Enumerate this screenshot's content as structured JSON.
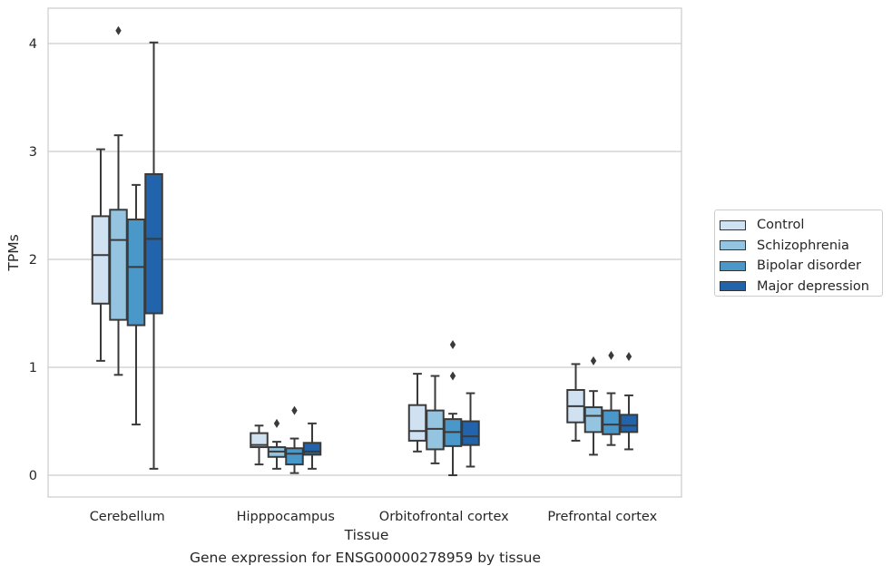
{
  "chart_data": {
    "type": "box",
    "caption": "Gene expression for ENSG00000278959 by tissue",
    "xlabel": "Tissue",
    "ylabel": "TPMs",
    "ylim": [
      -0.2,
      4.3
    ],
    "yticks": [
      0,
      1,
      2,
      3,
      4
    ],
    "grid": "horizontal",
    "legend_position": "right",
    "categories": [
      "Cerebellum",
      "Hipppocampus",
      "Orbitofrontal cortex",
      "Prefrontal cortex"
    ],
    "series": [
      {
        "name": "Control",
        "color": "#d0e1f2",
        "boxes": [
          {
            "whislo": 1.06,
            "q1": 1.59,
            "med": 2.04,
            "q3": 2.4,
            "whishi": 3.02,
            "fliers": []
          },
          {
            "whislo": 0.1,
            "q1": 0.26,
            "med": 0.28,
            "q3": 0.39,
            "whishi": 0.46,
            "fliers": []
          },
          {
            "whislo": 0.22,
            "q1": 0.32,
            "med": 0.41,
            "q3": 0.65,
            "whishi": 0.94,
            "fliers": []
          },
          {
            "whislo": 0.32,
            "q1": 0.49,
            "med": 0.64,
            "q3": 0.79,
            "whishi": 1.03,
            "fliers": []
          }
        ]
      },
      {
        "name": "Schizophrenia",
        "color": "#94c4df",
        "boxes": [
          {
            "whislo": 0.93,
            "q1": 1.44,
            "med": 2.18,
            "q3": 2.46,
            "whishi": 3.15,
            "fliers": [
              4.12
            ]
          },
          {
            "whislo": 0.06,
            "q1": 0.17,
            "med": 0.22,
            "q3": 0.26,
            "whishi": 0.31,
            "fliers": [
              0.48
            ]
          },
          {
            "whislo": 0.11,
            "q1": 0.24,
            "med": 0.43,
            "q3": 0.6,
            "whishi": 0.92,
            "fliers": []
          },
          {
            "whislo": 0.19,
            "q1": 0.4,
            "med": 0.55,
            "q3": 0.63,
            "whishi": 0.78,
            "fliers": [
              1.06
            ]
          }
        ]
      },
      {
        "name": "Bipolar disorder",
        "color": "#4a98c9",
        "boxes": [
          {
            "whislo": 0.47,
            "q1": 1.39,
            "med": 1.93,
            "q3": 2.37,
            "whishi": 2.69,
            "fliers": []
          },
          {
            "whislo": 0.02,
            "q1": 0.1,
            "med": 0.2,
            "q3": 0.25,
            "whishi": 0.34,
            "fliers": [
              0.6
            ]
          },
          {
            "whislo": 0.0,
            "q1": 0.27,
            "med": 0.4,
            "q3": 0.52,
            "whishi": 0.57,
            "fliers": [
              0.92,
              1.21
            ]
          },
          {
            "whislo": 0.28,
            "q1": 0.38,
            "med": 0.47,
            "q3": 0.6,
            "whishi": 0.76,
            "fliers": [
              1.11
            ]
          }
        ]
      },
      {
        "name": "Major depression",
        "color": "#2164ab",
        "boxes": [
          {
            "whislo": 0.06,
            "q1": 1.5,
            "med": 2.19,
            "q3": 2.79,
            "whishi": 4.01,
            "fliers": []
          },
          {
            "whislo": 0.06,
            "q1": 0.19,
            "med": 0.22,
            "q3": 0.3,
            "whishi": 0.48,
            "fliers": []
          },
          {
            "whislo": 0.08,
            "q1": 0.28,
            "med": 0.36,
            "q3": 0.5,
            "whishi": 0.76,
            "fliers": []
          },
          {
            "whislo": 0.24,
            "q1": 0.4,
            "med": 0.46,
            "q3": 0.56,
            "whishi": 0.74,
            "fliers": [
              1.1
            ]
          }
        ]
      }
    ]
  },
  "legend": {
    "items": [
      {
        "label": "Control",
        "color": "#d0e1f2"
      },
      {
        "label": "Schizophrenia",
        "color": "#94c4df"
      },
      {
        "label": "Bipolar disorder",
        "color": "#4a98c9"
      },
      {
        "label": "Major depression",
        "color": "#2164ab"
      }
    ]
  }
}
